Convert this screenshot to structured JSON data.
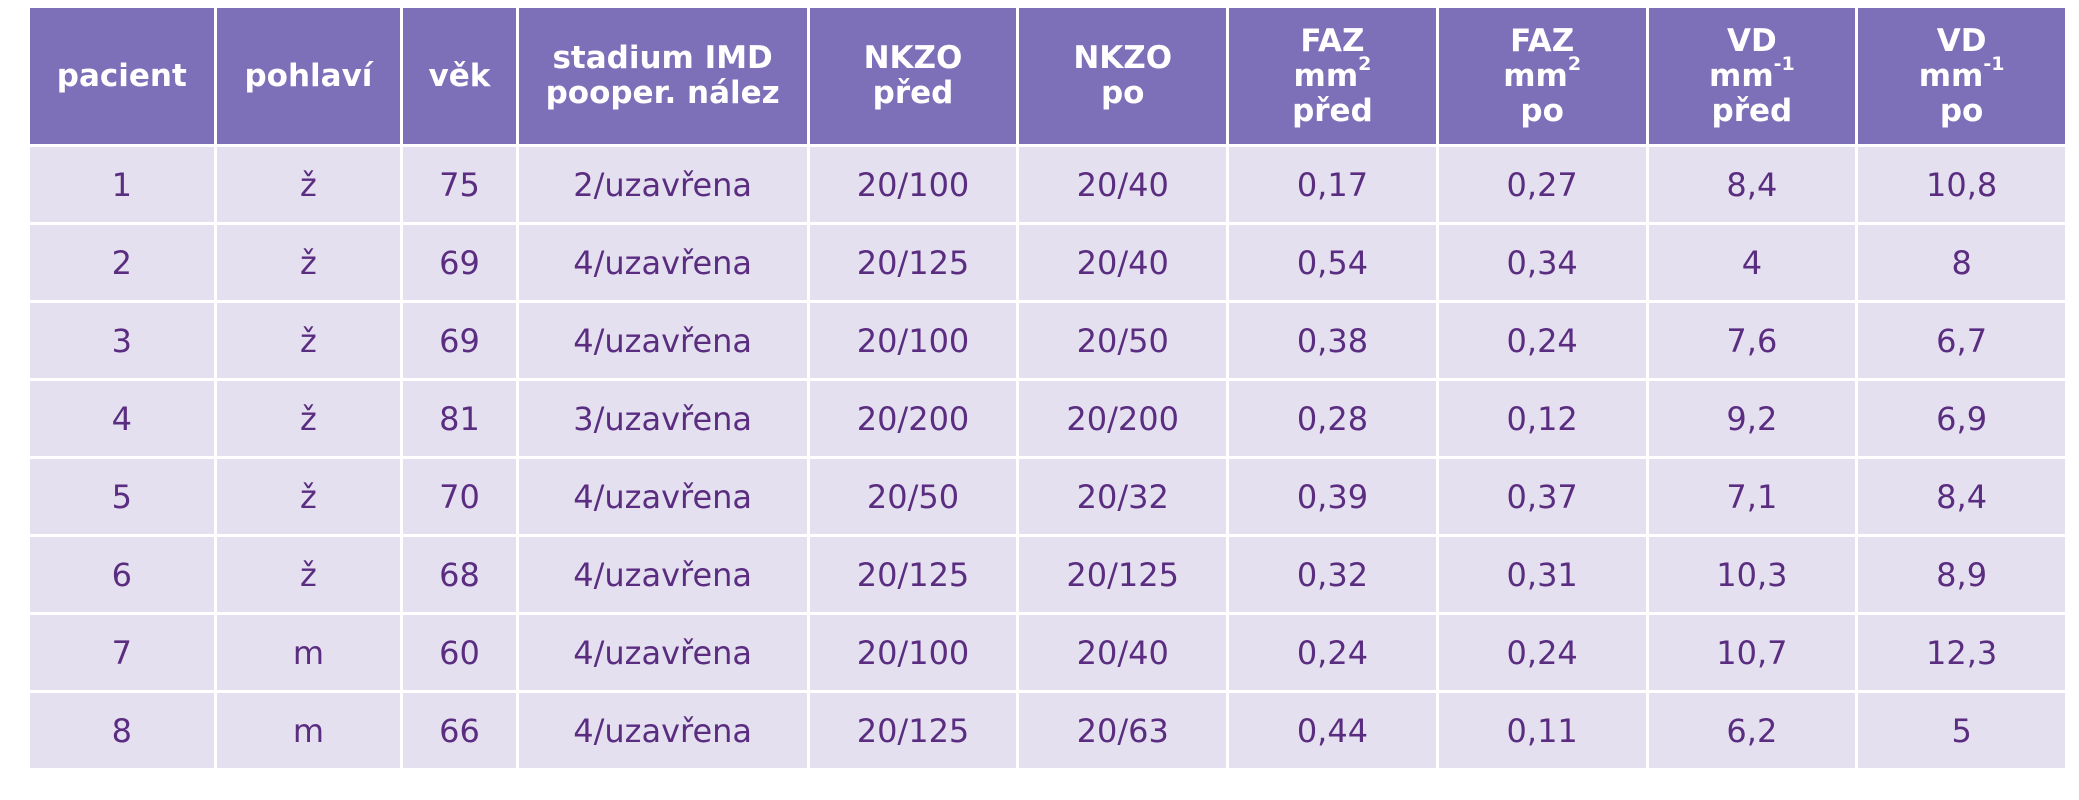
{
  "table": {
    "headers": [
      {
        "lines": [
          {
            "text": "pacient"
          }
        ]
      },
      {
        "lines": [
          {
            "text": "pohlaví"
          }
        ]
      },
      {
        "lines": [
          {
            "text": "věk"
          }
        ]
      },
      {
        "lines": [
          {
            "text": "stadium IMD"
          },
          {
            "text": "pooper. nález"
          }
        ]
      },
      {
        "lines": [
          {
            "text": "NKZO"
          },
          {
            "text": "před"
          }
        ]
      },
      {
        "lines": [
          {
            "text": "NKZO"
          },
          {
            "text": "po"
          }
        ]
      },
      {
        "lines": [
          {
            "text": "FAZ"
          },
          {
            "text": "mm",
            "sup": "2"
          },
          {
            "text": "před"
          }
        ]
      },
      {
        "lines": [
          {
            "text": "FAZ"
          },
          {
            "text": "mm",
            "sup": "2"
          },
          {
            "text": "po"
          }
        ]
      },
      {
        "lines": [
          {
            "text": "VD"
          },
          {
            "text": "mm",
            "sup": "-1"
          },
          {
            "text": "před"
          }
        ]
      },
      {
        "lines": [
          {
            "text": "VD"
          },
          {
            "text": "mm",
            "sup": "-1"
          },
          {
            "text": "po"
          }
        ]
      }
    ],
    "rows": [
      [
        "1",
        "ž",
        "75",
        "2/uzavřena",
        "20/100",
        "20/40",
        "0,17",
        "0,27",
        "8,4",
        "10,8"
      ],
      [
        "2",
        "ž",
        "69",
        "4/uzavřena",
        "20/125",
        "20/40",
        "0,54",
        "0,34",
        "4",
        "8"
      ],
      [
        "3",
        "ž",
        "69",
        "4/uzavřena",
        "20/100",
        "20/50",
        "0,38",
        "0,24",
        "7,6",
        "6,7"
      ],
      [
        "4",
        "ž",
        "81",
        "3/uzavřena",
        "20/200",
        "20/200",
        "0,28",
        "0,12",
        "9,2",
        "6,9"
      ],
      [
        "5",
        "ž",
        "70",
        "4/uzavřena",
        "20/50",
        "20/32",
        "0,39",
        "0,37",
        "7,1",
        "8,4"
      ],
      [
        "6",
        "ž",
        "68",
        "4/uzavřena",
        "20/125",
        "20/125",
        "0,32",
        "0,31",
        "10,3",
        "8,9"
      ],
      [
        "7",
        "m",
        "60",
        "4/uzavřena",
        "20/100",
        "20/40",
        "0,24",
        "0,24",
        "10,7",
        "12,3"
      ],
      [
        "8",
        "m",
        "66",
        "4/uzavřena",
        "20/125",
        "20/63",
        "0,44",
        "0,11",
        "6,2",
        "5"
      ]
    ]
  },
  "colors": {
    "header_background": "#7d6fb8",
    "header_text": "#ffffff",
    "cell_background": "#e4e0f0",
    "cell_text": "#5b2d80"
  }
}
